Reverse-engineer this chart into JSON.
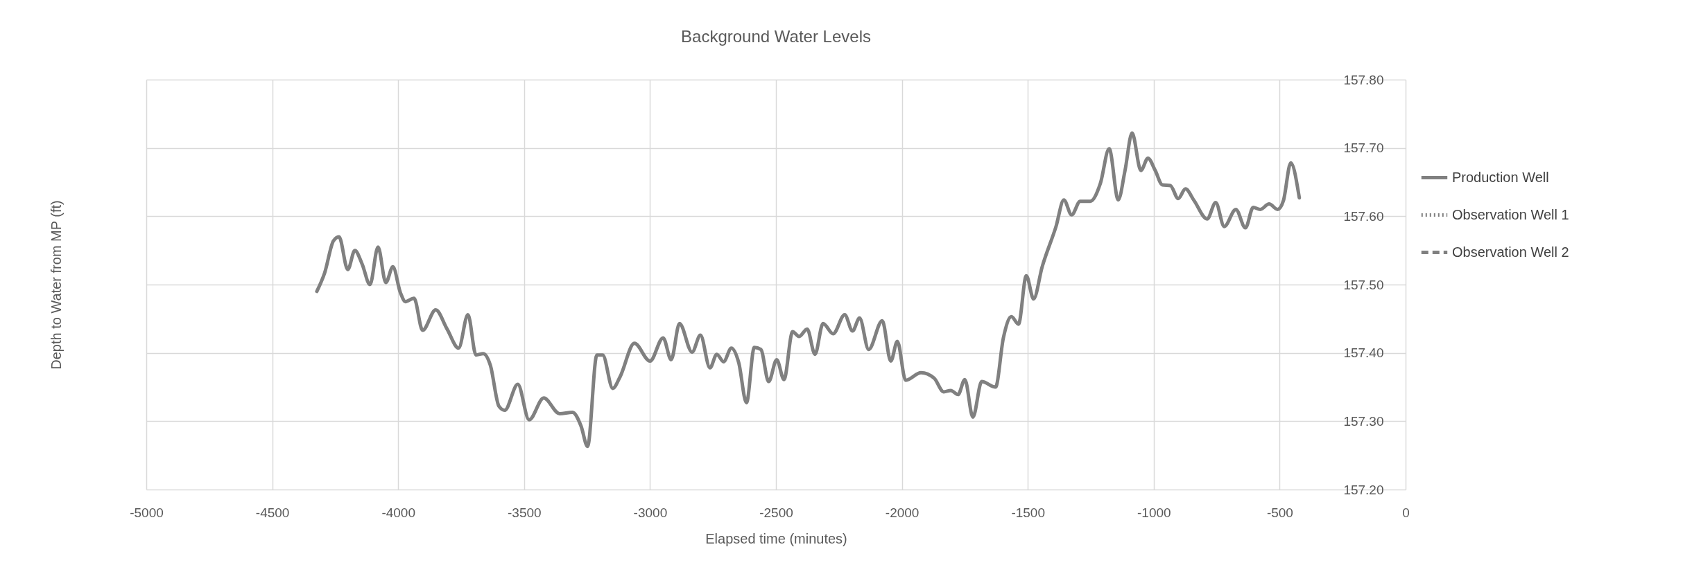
{
  "chart_data": {
    "type": "line",
    "title": "Background Water Levels",
    "xlabel": "Elapsed time (minutes)",
    "ylabel": "Depth to Water from MP (ft)",
    "xlim": [
      -5000,
      0
    ],
    "xticks": [
      -5000,
      -4500,
      -4000,
      -3500,
      -3000,
      -2500,
      -2000,
      -1500,
      -1000,
      -500,
      0
    ],
    "ylim": [
      157.2,
      157.8
    ],
    "yticks": [
      {
        "value": 157.2,
        "label": "157.20"
      },
      {
        "value": 157.3,
        "label": "157.30"
      },
      {
        "value": 157.4,
        "label": "157.40"
      },
      {
        "value": 157.5,
        "label": "157.50"
      },
      {
        "value": 157.6,
        "label": "157.60"
      },
      {
        "value": 157.7,
        "label": "157.70"
      },
      {
        "value": 157.8,
        "label": "157.80"
      }
    ],
    "grid": true,
    "legend": "right",
    "series": [
      {
        "name": "Production Well",
        "color": "#808080",
        "line_style": "solid",
        "x": [
          -4323,
          -4292,
          -4257,
          -4235,
          -4200,
          -4172,
          -4143,
          -4112,
          -4080,
          -4049,
          -4021,
          -3991,
          -3971,
          -3937,
          -3903,
          -3851,
          -3806,
          -3760,
          -3723,
          -3691,
          -3662,
          -3634,
          -3600,
          -3577,
          -3525,
          -3480,
          -3422,
          -3359,
          -3308,
          -3274,
          -3248,
          -3211,
          -3188,
          -3148,
          -3119,
          -3062,
          -3000,
          -2948,
          -2916,
          -2883,
          -2833,
          -2800,
          -2762,
          -2735,
          -2708,
          -2677,
          -2648,
          -2617,
          -2586,
          -2560,
          -2529,
          -2497,
          -2468,
          -2434,
          -2408,
          -2376,
          -2345,
          -2313,
          -2273,
          -2227,
          -2196,
          -2168,
          -2132,
          -2078,
          -2044,
          -2018,
          -1985,
          -1924,
          -1872,
          -1834,
          -1806,
          -1777,
          -1750,
          -1718,
          -1683,
          -1628,
          -1597,
          -1565,
          -1537,
          -1506,
          -1477,
          -1443,
          -1388,
          -1357,
          -1326,
          -1292,
          -1252,
          -1212,
          -1177,
          -1141,
          -1114,
          -1086,
          -1051,
          -1023,
          -994,
          -966,
          -934,
          -903,
          -874,
          -840,
          -788,
          -754,
          -720,
          -674,
          -636,
          -605,
          -577,
          -542,
          -508,
          -485,
          -456,
          -422
        ],
        "values": [
          157.49,
          157.517,
          157.564,
          157.57,
          157.522,
          157.55,
          157.53,
          157.5,
          157.555,
          157.503,
          157.526,
          157.488,
          157.475,
          157.48,
          157.433,
          157.463,
          157.435,
          157.407,
          157.456,
          157.397,
          157.399,
          157.382,
          157.322,
          157.316,
          157.354,
          157.302,
          157.334,
          157.311,
          157.313,
          157.293,
          157.263,
          157.397,
          157.397,
          157.348,
          157.365,
          157.414,
          157.388,
          157.422,
          157.39,
          157.443,
          157.401,
          157.426,
          157.378,
          157.398,
          157.387,
          157.407,
          157.386,
          157.327,
          157.408,
          157.405,
          157.358,
          157.39,
          157.361,
          157.431,
          157.424,
          157.435,
          157.398,
          157.443,
          157.428,
          157.456,
          157.432,
          157.451,
          157.405,
          157.447,
          157.388,
          157.417,
          157.36,
          157.371,
          157.363,
          157.343,
          157.345,
          157.339,
          157.361,
          157.306,
          157.358,
          157.35,
          157.422,
          157.453,
          157.442,
          157.513,
          157.479,
          157.526,
          157.585,
          157.624,
          157.602,
          157.622,
          157.622,
          157.648,
          157.699,
          157.624,
          157.667,
          157.722,
          157.667,
          157.685,
          157.667,
          157.646,
          157.645,
          157.626,
          157.64,
          157.623,
          157.596,
          157.62,
          157.585,
          157.61,
          157.583,
          157.613,
          157.61,
          157.618,
          157.61,
          157.623,
          157.678,
          157.627
        ]
      },
      {
        "name": "Observation Well 1",
        "color": "#808080",
        "line_style": "dotted"
      },
      {
        "name": "Observation Well 2",
        "color": "#808080",
        "line_style": "dashed"
      }
    ]
  }
}
